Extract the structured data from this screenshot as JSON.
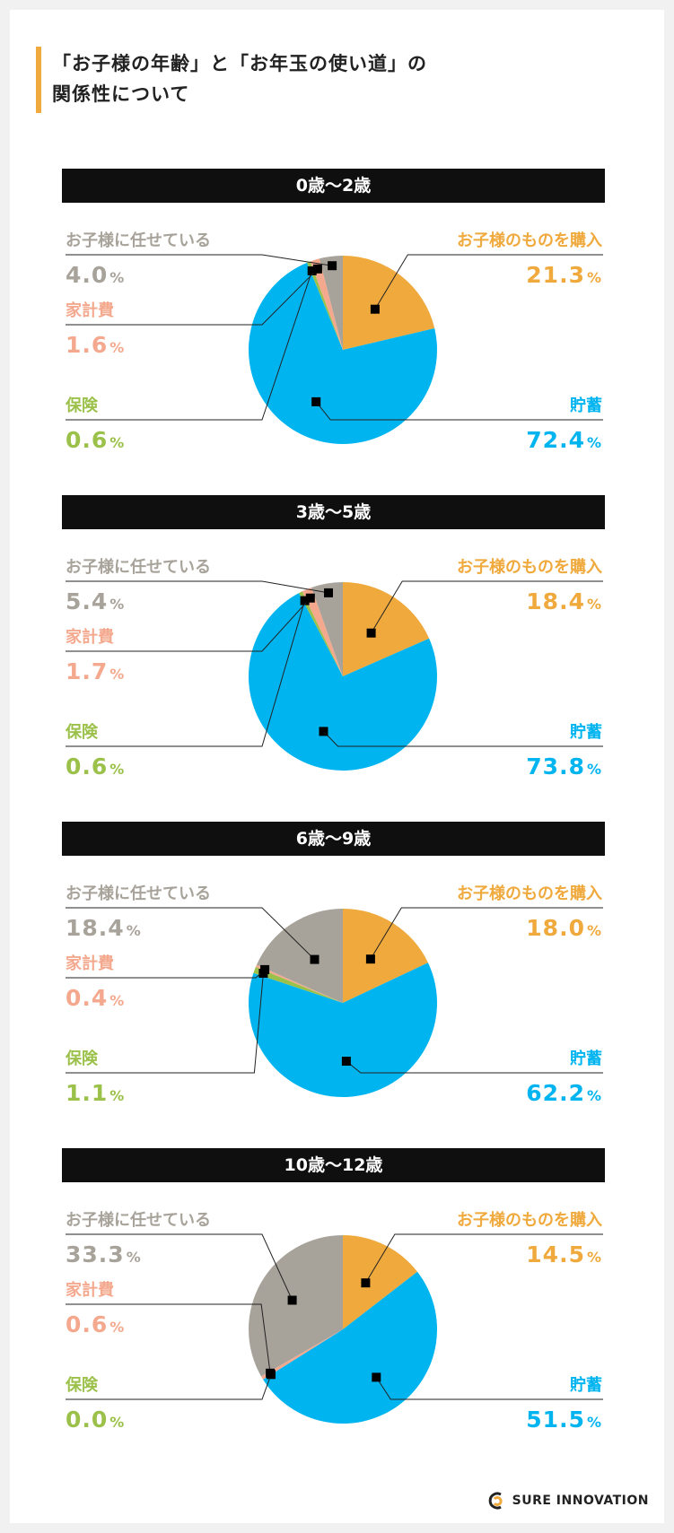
{
  "title_lines": [
    "「お子様の年齢」と「お年玉の使い道」の",
    "関係性について"
  ],
  "colors": {
    "kodomo_kounyu": "#efa93c",
    "chochiku": "#00b4f0",
    "hoken": "#9bc14a",
    "kakeihi": "#f4a98f",
    "makaseru": "#a8a39a"
  },
  "logo": "SURE INNOVATION",
  "chart_data": [
    {
      "type": "pie",
      "title": "0歳〜2歳",
      "categories": [
        "お子様のものを購入",
        "貯蓄",
        "保険",
        "家計費",
        "お子様に任せている"
      ],
      "values": [
        21.3,
        72.4,
        0.6,
        1.6,
        4.0
      ],
      "value_labels": [
        "21.3",
        "72.4",
        "0.6",
        "1.6",
        "4.0"
      ],
      "unit": "%"
    },
    {
      "type": "pie",
      "title": "3歳〜5歳",
      "categories": [
        "お子様のものを購入",
        "貯蓄",
        "保険",
        "家計費",
        "お子様に任せている"
      ],
      "values": [
        18.4,
        73.8,
        0.6,
        1.7,
        5.4
      ],
      "value_labels": [
        "18.4",
        "73.8",
        "0.6",
        "1.7",
        "5.4"
      ],
      "unit": "%"
    },
    {
      "type": "pie",
      "title": "6歳〜9歳",
      "categories": [
        "お子様のものを購入",
        "貯蓄",
        "保険",
        "家計費",
        "お子様に任せている"
      ],
      "values": [
        18.0,
        62.2,
        1.1,
        0.4,
        18.4
      ],
      "value_labels": [
        "18.0",
        "62.2",
        "1.1",
        "0.4",
        "18.4"
      ],
      "unit": "%"
    },
    {
      "type": "pie",
      "title": "10歳〜12歳",
      "categories": [
        "お子様のものを購入",
        "貯蓄",
        "保険",
        "家計費",
        "お子様に任せている"
      ],
      "values": [
        14.5,
        51.5,
        0.0,
        0.6,
        33.3
      ],
      "value_labels": [
        "14.5",
        "51.5",
        "0.0",
        "0.6",
        "33.3"
      ],
      "unit": "%"
    }
  ]
}
